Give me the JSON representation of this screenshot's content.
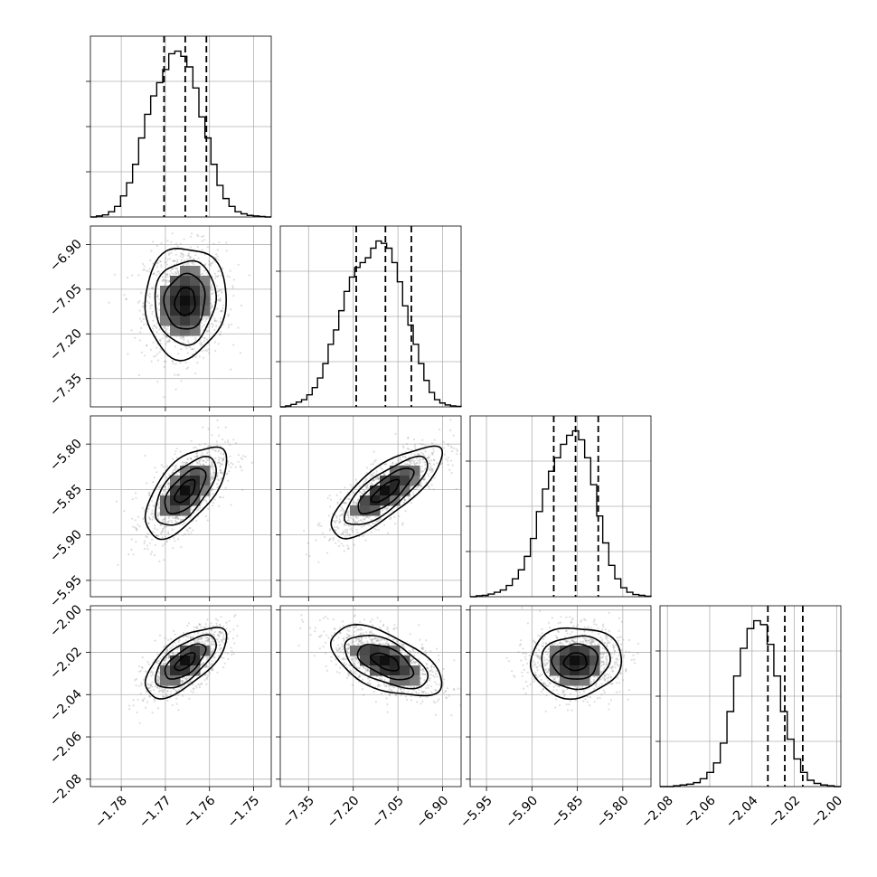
{
  "chart_data": {
    "type": "corner",
    "parameters": [
      {
        "range": [
          -1.787,
          -1.746
        ],
        "ticks": [
          -1.78,
          -1.77,
          -1.76,
          -1.75
        ],
        "tick_labels": [
          "−1.78",
          "−1.77",
          "−1.76",
          "−1.75"
        ],
        "median": -1.7655,
        "q16": -1.7703,
        "q84": -1.7607,
        "sd": 0.0046
      },
      {
        "range": [
          -7.445,
          -6.838
        ],
        "ticks": [
          -7.35,
          -7.2,
          -7.05,
          -6.9
        ],
        "tick_labels": [
          "−7.35",
          "−7.20",
          "−7.05",
          "−6.90"
        ],
        "median": -7.092,
        "q16": -7.19,
        "q84": -7.005,
        "sd": 0.093
      },
      {
        "range": [
          -5.968,
          -5.769
        ],
        "ticks": [
          -5.95,
          -5.9,
          -5.85,
          -5.8
        ],
        "tick_labels": [
          "−5.95",
          "−5.90",
          "−5.85",
          "−5.80"
        ],
        "median": -5.852,
        "q16": -5.876,
        "q84": -5.827,
        "sd": 0.025
      },
      {
        "range": [
          -2.0835,
          -1.998
        ],
        "ticks": [
          -2.08,
          -2.06,
          -2.04,
          -2.02,
          -2.0
        ],
        "tick_labels": [
          "−2.08",
          "−2.06",
          "−2.04",
          "−2.02",
          "−2.00"
        ],
        "median": -2.0245,
        "q16": -2.0325,
        "q84": -2.016,
        "sd": 0.0083
      }
    ],
    "histograms": [
      [
        0,
        2,
        4,
        10,
        20,
        40,
        65,
        100,
        150,
        195,
        230,
        255,
        280,
        310,
        315,
        305,
        285,
        245,
        190,
        150,
        100,
        60,
        35,
        20,
        10,
        6,
        3,
        2,
        1,
        0
      ],
      [
        0,
        2,
        5,
        10,
        15,
        25,
        40,
        60,
        90,
        130,
        160,
        200,
        240,
        270,
        290,
        300,
        310,
        330,
        345,
        340,
        330,
        300,
        260,
        210,
        170,
        130,
        90,
        55,
        30,
        15,
        8,
        4,
        2,
        1
      ],
      [
        0,
        2,
        3,
        6,
        10,
        15,
        25,
        40,
        60,
        90,
        130,
        190,
        240,
        280,
        310,
        340,
        360,
        370,
        350,
        310,
        250,
        180,
        120,
        70,
        40,
        20,
        10,
        5,
        3,
        1
      ],
      [
        0,
        0,
        1,
        2,
        3,
        5,
        10,
        18,
        30,
        55,
        95,
        140,
        175,
        200,
        210,
        205,
        180,
        140,
        95,
        60,
        35,
        18,
        8,
        4,
        2,
        1,
        0
      ]
    ],
    "correlations": [
      {
        "x": 0,
        "y": 1,
        "r": 0.05
      },
      {
        "x": 0,
        "y": 2,
        "r": 0.62
      },
      {
        "x": 1,
        "y": 2,
        "r": 0.78
      },
      {
        "x": 0,
        "y": 3,
        "r": 0.65
      },
      {
        "x": 1,
        "y": 3,
        "r": -0.55
      },
      {
        "x": 2,
        "y": 3,
        "r": 0.05
      }
    ],
    "contour_levels_sigma": [
      0.5,
      1.0,
      1.5,
      2.0
    ],
    "grid": true
  }
}
